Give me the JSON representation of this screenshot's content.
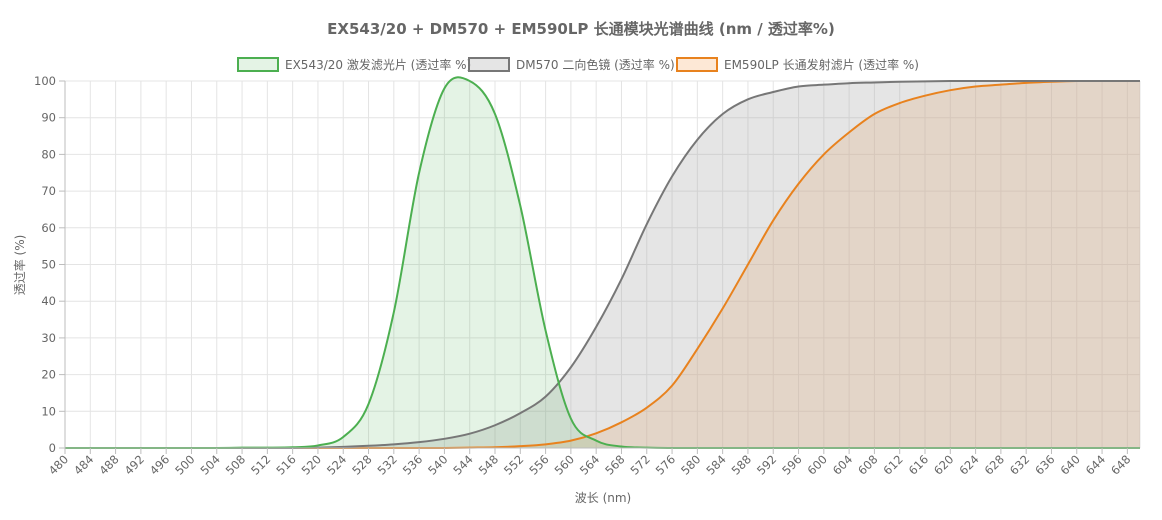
{
  "chart_data": {
    "type": "area",
    "title": "EX543/20 + DM570 + EM590LP 长通模块光谱曲线 (nm / 透过率%)",
    "xlabel": "波长 (nm)",
    "ylabel": "透过率 (%)",
    "xlim": [
      480,
      650
    ],
    "ylim": [
      0,
      100
    ],
    "x_ticks": [
      480,
      484,
      488,
      492,
      496,
      500,
      504,
      508,
      512,
      516,
      520,
      524,
      528,
      532,
      536,
      540,
      544,
      548,
      552,
      556,
      560,
      564,
      568,
      572,
      576,
      580,
      584,
      588,
      592,
      596,
      600,
      604,
      608,
      612,
      616,
      620,
      624,
      628,
      632,
      636,
      640,
      644,
      648
    ],
    "y_ticks": [
      0,
      10,
      20,
      30,
      40,
      50,
      60,
      70,
      80,
      90,
      100
    ],
    "grid": true,
    "legend_position": "top-center",
    "x": [
      480,
      484,
      488,
      492,
      496,
      500,
      504,
      508,
      512,
      516,
      520,
      524,
      528,
      532,
      536,
      540,
      544,
      548,
      552,
      556,
      560,
      564,
      568,
      572,
      576,
      580,
      584,
      588,
      592,
      596,
      600,
      604,
      608,
      612,
      616,
      620,
      624,
      628,
      632,
      636,
      640,
      644,
      648,
      650
    ],
    "series": [
      {
        "name": "EX543/20 激发滤光片 (透过率 %)",
        "color": "#4caf50",
        "fill": "rgba(76,175,80,0.15)",
        "values": [
          0,
          0,
          0,
          0,
          0,
          0,
          0,
          0.1,
          0.1,
          0.2,
          0.7,
          3,
          12,
          37,
          75,
          98,
          100,
          91,
          66,
          32,
          8,
          2,
          0.4,
          0.1,
          0,
          0,
          0,
          0,
          0,
          0,
          0,
          0,
          0,
          0,
          0,
          0,
          0,
          0,
          0,
          0,
          0,
          0,
          0,
          0
        ]
      },
      {
        "name": "DM570 二向色镜 (透过率 %)",
        "color": "#777777",
        "fill": "rgba(170,170,170,0.3)",
        "values": [
          0,
          0,
          0,
          0,
          0,
          0,
          0,
          0,
          0,
          0,
          0.1,
          0.3,
          0.6,
          1,
          1.6,
          2.5,
          3.9,
          6.2,
          9.5,
          14,
          22,
          33,
          46,
          61,
          74,
          84,
          91,
          95,
          97,
          98.5,
          99,
          99.4,
          99.6,
          99.8,
          99.9,
          100,
          100,
          100,
          100,
          100,
          100,
          100,
          100,
          100
        ]
      },
      {
        "name": "EM590LP 长通发射滤片 (透过率 %)",
        "color": "#e8821e",
        "fill": "rgba(248,180,120,0.3)",
        "values": [
          0,
          0,
          0,
          0,
          0,
          0,
          0,
          0,
          0,
          0,
          0,
          0,
          0,
          0,
          0,
          0,
          0.1,
          0.2,
          0.5,
          1,
          2,
          4,
          7,
          11,
          17,
          27,
          38,
          50,
          62,
          72,
          80,
          86,
          91,
          94,
          96,
          97.5,
          98.5,
          99,
          99.5,
          99.8,
          100,
          100,
          100,
          100
        ]
      }
    ]
  }
}
